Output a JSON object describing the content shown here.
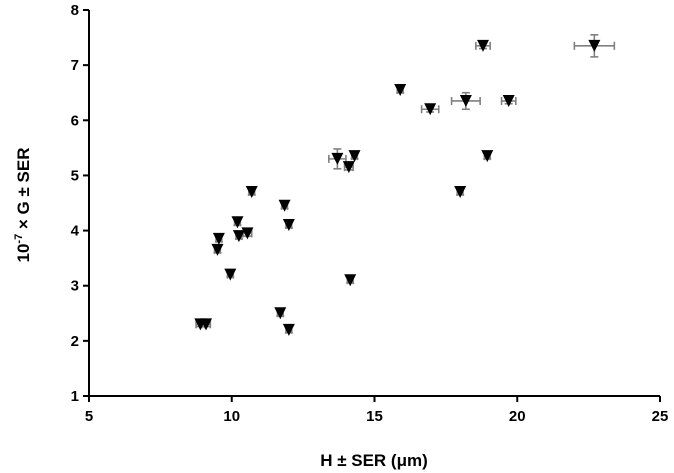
{
  "chart_data": {
    "type": "scatter",
    "xlabel": "H ± SER (μm)",
    "ylabel_parts": {
      "base": "10",
      "exponent": "-7",
      "rest": " × G ± SER"
    },
    "xlim": [
      5,
      25
    ],
    "ylim": [
      1,
      8
    ],
    "x_ticks": [
      "5",
      "10",
      "15",
      "20",
      "25"
    ],
    "y_ticks": [
      "1",
      "2",
      "3",
      "4",
      "5",
      "6",
      "7",
      "8"
    ],
    "grid": false,
    "marker": "down-triangle",
    "marker_color": "#000000",
    "errorbar_color": "#808080",
    "points": [
      {
        "x": 8.9,
        "y": 2.3,
        "xerr": 0.15,
        "yerr": 0.04
      },
      {
        "x": 9.1,
        "y": 2.3,
        "xerr": 0.15,
        "yerr": 0.04
      },
      {
        "x": 9.5,
        "y": 3.65,
        "xerr": 0.1,
        "yerr": 0.05
      },
      {
        "x": 9.55,
        "y": 3.85,
        "xerr": 0.1,
        "yerr": 0.05
      },
      {
        "x": 9.95,
        "y": 3.2,
        "xerr": 0.1,
        "yerr": 0.04
      },
      {
        "x": 10.2,
        "y": 4.15,
        "xerr": 0.1,
        "yerr": 0.05
      },
      {
        "x": 10.25,
        "y": 3.9,
        "xerr": 0.1,
        "yerr": 0.05
      },
      {
        "x": 10.55,
        "y": 3.95,
        "xerr": 0.15,
        "yerr": 0.05
      },
      {
        "x": 10.7,
        "y": 4.7,
        "xerr": 0.1,
        "yerr": 0.05
      },
      {
        "x": 11.7,
        "y": 2.5,
        "xerr": 0.1,
        "yerr": 0.05
      },
      {
        "x": 11.85,
        "y": 4.45,
        "xerr": 0.1,
        "yerr": 0.05
      },
      {
        "x": 12.0,
        "y": 2.2,
        "xerr": 0.1,
        "yerr": 0.05
      },
      {
        "x": 12.0,
        "y": 4.1,
        "xerr": 0.1,
        "yerr": 0.05
      },
      {
        "x": 13.7,
        "y": 5.3,
        "xerr": 0.3,
        "yerr": 0.18
      },
      {
        "x": 14.1,
        "y": 5.15,
        "xerr": 0.15,
        "yerr": 0.05
      },
      {
        "x": 14.15,
        "y": 3.1,
        "xerr": 0.1,
        "yerr": 0.05
      },
      {
        "x": 14.3,
        "y": 5.35,
        "xerr": 0.1,
        "yerr": 0.05
      },
      {
        "x": 15.9,
        "y": 6.55,
        "xerr": 0.1,
        "yerr": 0.05
      },
      {
        "x": 16.95,
        "y": 6.2,
        "xerr": 0.3,
        "yerr": 0.05
      },
      {
        "x": 18.0,
        "y": 4.7,
        "xerr": 0.1,
        "yerr": 0.05
      },
      {
        "x": 18.2,
        "y": 6.35,
        "xerr": 0.5,
        "yerr": 0.15
      },
      {
        "x": 18.8,
        "y": 7.35,
        "xerr": 0.25,
        "yerr": 0.05
      },
      {
        "x": 18.95,
        "y": 5.35,
        "xerr": 0.1,
        "yerr": 0.05
      },
      {
        "x": 19.7,
        "y": 6.35,
        "xerr": 0.25,
        "yerr": 0.05
      },
      {
        "x": 22.7,
        "y": 7.35,
        "xerr": 0.7,
        "yerr": 0.2
      }
    ]
  }
}
